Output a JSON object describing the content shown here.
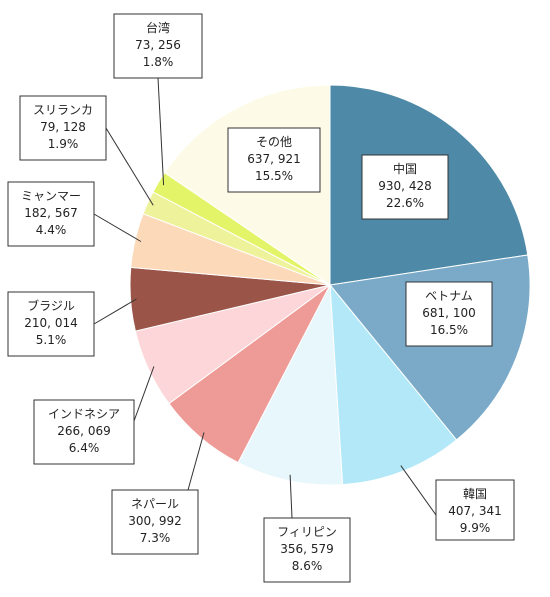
{
  "chart_data": {
    "type": "pie",
    "title": "",
    "legend": "none",
    "start": "12 o'clock, clockwise",
    "slices": [
      {
        "name": "中国",
        "value": "930, 428",
        "percent": "22.6%",
        "share": 22.6,
        "color": "#4e8aa8"
      },
      {
        "name": "ベトナム",
        "value": "681, 100",
        "percent": "16.5%",
        "share": 16.5,
        "color": "#7aaac8"
      },
      {
        "name": "韓国",
        "value": "407, 341",
        "percent": "9.9%",
        "share": 9.9,
        "color": "#b2e8f8"
      },
      {
        "name": "フィリピン",
        "value": "356, 579",
        "percent": "8.6%",
        "share": 8.6,
        "color": "#e8f7fb"
      },
      {
        "name": "ネパール",
        "value": "300, 992",
        "percent": "7.3%",
        "share": 7.3,
        "color": "#ee9a96"
      },
      {
        "name": "インドネシア",
        "value": "266, 069",
        "percent": "6.4%",
        "share": 6.4,
        "color": "#fcd6d8"
      },
      {
        "name": "ブラジル",
        "value": "210, 014",
        "percent": "5.1%",
        "share": 5.1,
        "color": "#9a5448"
      },
      {
        "name": "ミャンマー",
        "value": "182, 567",
        "percent": "4.4%",
        "share": 4.4,
        "color": "#fcd9b8"
      },
      {
        "name": "スリランカ",
        "value": "79, 128",
        "percent": "1.9%",
        "share": 1.9,
        "color": "#eef29a"
      },
      {
        "name": "台湾",
        "value": "73, 256",
        "percent": "1.8%",
        "share": 1.8,
        "color": "#e4f468"
      },
      {
        "name": "その他",
        "value": "637, 921",
        "percent": "15.5%",
        "share": 15.5,
        "color": "#fdfbe8"
      }
    ]
  }
}
